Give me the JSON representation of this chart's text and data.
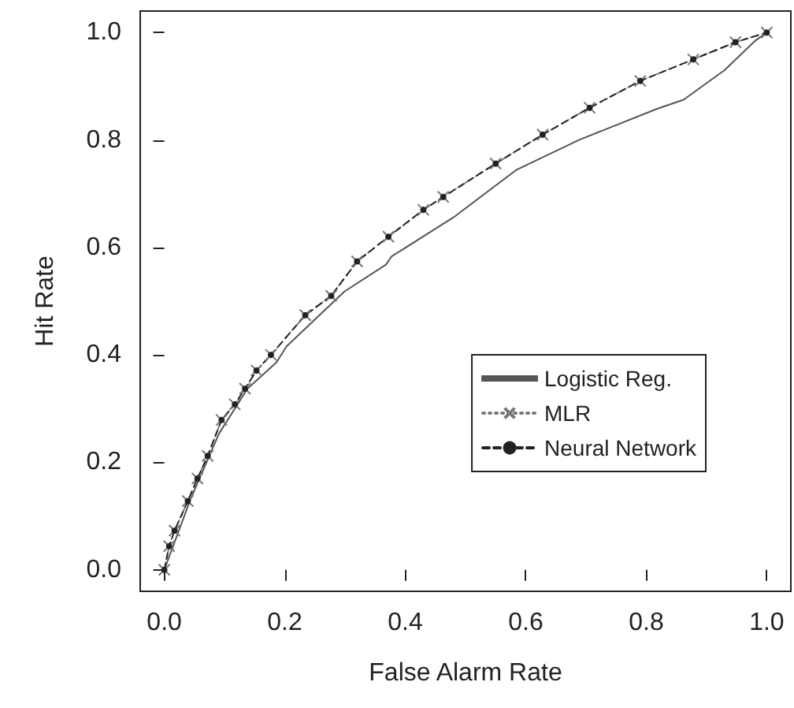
{
  "chart_data": {
    "type": "line",
    "xlabel": "False Alarm Rate",
    "ylabel": "Hit Rate",
    "xlim": [
      -0.04,
      1.04
    ],
    "ylim": [
      -0.04,
      1.04
    ],
    "xticks": [
      {
        "value": 0,
        "label": "0.0"
      },
      0.2,
      0.4,
      0.6,
      0.8,
      {
        "value": 1,
        "label": "1.0"
      }
    ],
    "yticks": [
      {
        "value": 0,
        "label": "0.0"
      },
      0.2,
      0.4,
      0.6,
      0.8,
      {
        "value": 1,
        "label": "1.0"
      }
    ],
    "grid": false,
    "legend": "right",
    "series": [
      {
        "name": "Logistic Reg.",
        "color": "#555555",
        "marker": "none",
        "line_style": "solid",
        "x": [
          0,
          0.043,
          0.091,
          0.138,
          0.186,
          0.203,
          0.299,
          0.368,
          0.377,
          0.48,
          0.584,
          0.688,
          0.818,
          0.862,
          0.93,
          0.98,
          1
        ],
        "values": [
          0,
          0.13,
          0.254,
          0.337,
          0.386,
          0.416,
          0.518,
          0.568,
          0.583,
          0.656,
          0.744,
          0.8,
          0.858,
          0.875,
          0.93,
          0.984,
          1
        ]
      },
      {
        "name": "MLR",
        "color": "#777777",
        "marker": "cross",
        "line_style": "dotted",
        "x": [
          0,
          0.008,
          0.017,
          0.039,
          0.055,
          0.072,
          0.095,
          0.117,
          0.134,
          0.153,
          0.177,
          0.234,
          0.277,
          0.32,
          0.372,
          0.43,
          0.463,
          0.55,
          0.628,
          0.706,
          0.79,
          0.878,
          0.948,
          1
        ],
        "values": [
          0,
          0.044,
          0.073,
          0.128,
          0.17,
          0.212,
          0.279,
          0.308,
          0.337,
          0.371,
          0.4,
          0.474,
          0.51,
          0.574,
          0.62,
          0.67,
          0.694,
          0.756,
          0.81,
          0.86,
          0.91,
          0.95,
          0.982,
          1
        ]
      },
      {
        "name": "Neural Network",
        "color": "#222222",
        "marker": "circle",
        "line_style": "dashed",
        "x": [
          0,
          0.008,
          0.017,
          0.039,
          0.055,
          0.072,
          0.095,
          0.117,
          0.134,
          0.153,
          0.177,
          0.234,
          0.277,
          0.32,
          0.372,
          0.43,
          0.463,
          0.55,
          0.628,
          0.706,
          0.79,
          0.878,
          0.948,
          1
        ],
        "values": [
          0,
          0.044,
          0.073,
          0.128,
          0.17,
          0.212,
          0.279,
          0.308,
          0.337,
          0.371,
          0.4,
          0.474,
          0.51,
          0.574,
          0.62,
          0.67,
          0.694,
          0.756,
          0.81,
          0.86,
          0.91,
          0.95,
          0.982,
          1
        ]
      }
    ]
  }
}
